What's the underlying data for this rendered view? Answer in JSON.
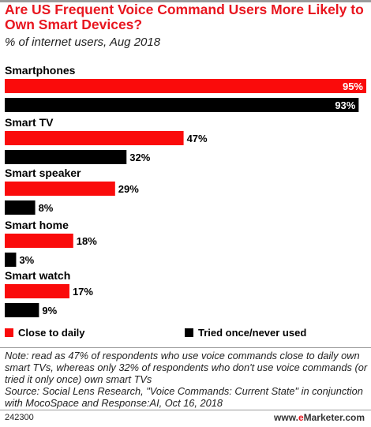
{
  "header": {
    "title": "Are US Frequent Voice Command Users More Likely to Own Smart Devices?",
    "subtitle": "% of internet users, Aug 2018"
  },
  "colors": {
    "accent": "#fa0b0b",
    "secondary": "#000000",
    "title": "#e8161f"
  },
  "chart_data": {
    "type": "bar",
    "orientation": "horizontal",
    "categories": [
      "Smartphones",
      "Smart TV",
      "Smart speaker",
      "Smart home",
      "Smart watch"
    ],
    "series": [
      {
        "name": "Close to daily",
        "values": [
          95,
          47,
          29,
          18,
          17
        ],
        "color": "#fa0b0b"
      },
      {
        "name": "Tried once/never used",
        "values": [
          93,
          32,
          8,
          3,
          9
        ],
        "color": "#000000"
      }
    ],
    "value_suffix": "%",
    "xlim": [
      0,
      95
    ],
    "grid": false,
    "legend_position": "bottom"
  },
  "legend": {
    "items": [
      "Close to daily",
      "Tried once/never used"
    ]
  },
  "footer": {
    "note": "Note: read as 47% of respondents who use voice commands close to daily own smart TVs, whereas only 32% of respondents who don't use voice commands (or tried it only once) own smart TVs",
    "source": "Source: Social Lens Research, \"Voice Commands: Current State\" in conjunction with MocoSpace and Response:AI, Oct 16, 2018",
    "chart_id": "242300",
    "brand_prefix": "www.",
    "brand_accent": "e",
    "brand_suffix": "Marketer.com"
  }
}
